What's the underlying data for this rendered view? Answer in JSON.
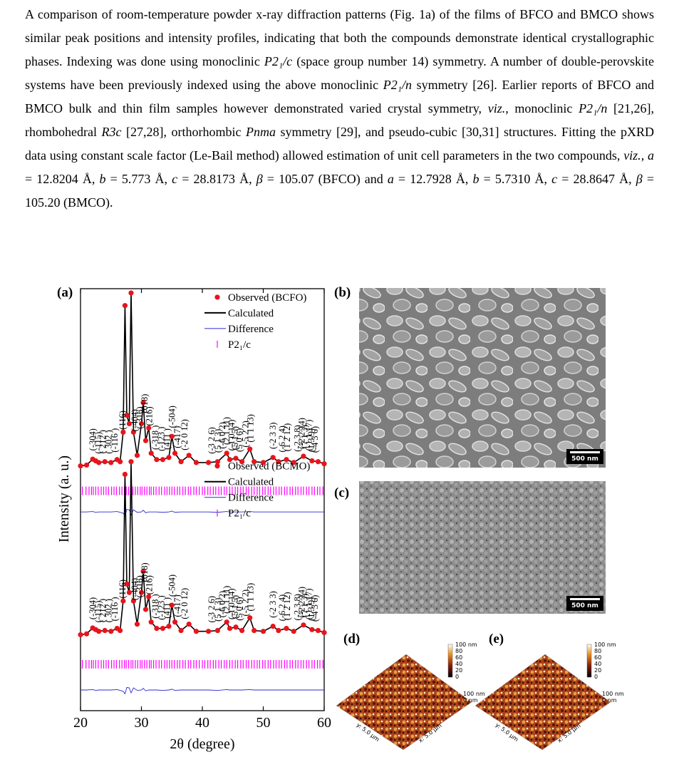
{
  "paragraph": {
    "runs": [
      {
        "text": "A comparison of room-temperature powder x-ray diffraction patterns (Fig. 1a) of the films of BFCO and BMCO shows similar peak positions and intensity profiles, indicating that both the compounds demonstrate identical crystallographic phases. Indexing was done using monoclinic "
      },
      {
        "text": "P2₁/c",
        "italic": true
      },
      {
        "text": " (space group number 14) symmetry. A number of double-perovskite systems have been previously indexed using the above monoclinic "
      },
      {
        "text": "P2₁/n",
        "italic": true
      },
      {
        "text": " symmetry [26].  Earlier reports of BFCO and BMCO bulk and thin film samples however demonstrated varied crystal symmetry, "
      },
      {
        "text": "viz.",
        "italic": true
      },
      {
        "text": ", monoclinic  "
      },
      {
        "text": "P2₁/n",
        "italic": true
      },
      {
        "text": " [21,26], rhombohedral "
      },
      {
        "text": "R3c",
        "italic": true
      },
      {
        "text": " [27,28], orthorhombic "
      },
      {
        "text": "Pnma",
        "italic": true
      },
      {
        "text": " symmetry [29], and pseudo-cubic [30,31] structures. Fitting the pXRD data using constant scale factor (Le-Bail method) allowed estimation of unit cell parameters in the two compounds, "
      },
      {
        "text": "viz.",
        "italic": true
      },
      {
        "text": ", "
      },
      {
        "text": "a",
        "italic": true
      },
      {
        "text": " = 12.8204 Å, "
      },
      {
        "text": "b",
        "italic": true
      },
      {
        "text": " = 5.773 Å, "
      },
      {
        "text": "c",
        "italic": true
      },
      {
        "text": " = 28.8173 Å, "
      },
      {
        "text": "β",
        "italic": true
      },
      {
        "text": " = 105.07 (BFCO) and "
      },
      {
        "text": "a",
        "italic": true
      },
      {
        "text": " = 12.7928 Å, "
      },
      {
        "text": "b",
        "italic": true
      },
      {
        "text": " = 5.7310 Å, "
      },
      {
        "text": "c",
        "italic": true
      },
      {
        "text": " = 28.8647 Å, "
      },
      {
        "text": "β",
        "italic": true
      },
      {
        "text": " = 105.20 (BMCO)."
      }
    ]
  },
  "figure": {
    "panel_labels": [
      "(a)",
      "(b)",
      "(c)",
      "(d)",
      "(e)"
    ],
    "xrd": {
      "type": "line",
      "xlabel": "2θ (degree)",
      "ylabel": "Intensity (a. u.)",
      "xlim": [
        20,
        60
      ],
      "xticks": [
        20,
        30,
        40,
        50,
        60
      ],
      "ylim": [
        0,
        100
      ],
      "x": [
        20,
        21,
        22,
        22.5,
        23,
        24,
        25,
        26,
        26.5,
        27,
        27.3,
        27.6,
        28,
        28.3,
        28.7,
        29.3,
        30,
        30.3,
        30.7,
        31.2,
        31.6,
        32.5,
        33.5,
        34.5,
        35,
        35.5,
        36.5,
        37.8,
        39,
        41,
        42.5,
        44,
        44.5,
        45.5,
        46.5,
        47.8,
        48.5,
        50,
        51.6,
        52.5,
        53.8,
        55,
        56.6,
        58,
        59,
        60
      ],
      "reflections": [
        20.3,
        20.9,
        21.4,
        21.8,
        22.1,
        22.5,
        22.9,
        23.4,
        23.8,
        24.2,
        24.6,
        25.1,
        25.5,
        25.9,
        26.4,
        26.8,
        27.2,
        27.5,
        27.9,
        28.3,
        28.6,
        29.0,
        29.4,
        29.8,
        30.1,
        30.5,
        30.9,
        31.3,
        31.6,
        32.0,
        32.4,
        32.9,
        33.3,
        33.8,
        34.2,
        34.6,
        35.0,
        35.4,
        35.9,
        36.3,
        36.8,
        37.2,
        37.7,
        38.1,
        38.6,
        39.0,
        39.5,
        40.0,
        40.4,
        40.9,
        41.3,
        41.8,
        42.2,
        42.7,
        43.1,
        43.6,
        44.0,
        44.5,
        44.9,
        45.4,
        45.8,
        46.3,
        46.7,
        47.2,
        47.6,
        48.1,
        48.5,
        49.0,
        49.4,
        49.9,
        50.3,
        50.8,
        51.2,
        51.7,
        52.1,
        52.6,
        53.0,
        53.5,
        53.9,
        54.4,
        54.8,
        55.3,
        55.7,
        56.2,
        56.6,
        57.1,
        57.5,
        58.0,
        58.4,
        58.9,
        59.3,
        59.8
      ],
      "peaks": [
        {
          "label": "(-304)",
          "x": 22.0
        },
        {
          "label": "(-115)",
          "x": 22.9
        },
        {
          "label": "( 212 )",
          "x": 23.6
        },
        {
          "label": "( 302 )",
          "x": 24.6
        },
        {
          "label": "(-116 )",
          "x": 25.6
        },
        {
          "label": "(116)",
          "x": 26.9
        },
        {
          "label": "(-404)",
          "x": 28.9
        },
        {
          "label": "(-316)",
          "x": 29.7
        },
        {
          "label": "(018)",
          "x": 30.5
        },
        {
          "label": "(216)",
          "x": 31.3
        },
        {
          "label": "(-318 )",
          "x": 32.3
        },
        {
          "label": "(-123 )",
          "x": 33.3
        },
        {
          "label": "(411 )",
          "x": 34.2
        },
        {
          "label": "(-504)",
          "x": 35.0
        },
        {
          "label": "(-417)",
          "x": 35.9
        },
        {
          "label": "(-2 0 12)",
          "x": 37.1
        },
        {
          "label": "(-3 2 6)",
          "x": 41.5
        },
        {
          "label": "(5 1 3)",
          "x": 42.6
        },
        {
          "label": "(-6 0 2)",
          "x": 43.3
        },
        {
          "label": "(2 1 11)",
          "x": 44.0
        },
        {
          "label": "(-1 0 14)",
          "x": 44.8
        },
        {
          "label": "(5 1 5)",
          "x": 45.4
        },
        {
          "label": "(5 0 6)",
          "x": 46.1
        },
        {
          "label": "(-5 2 2)",
          "x": 47.1
        },
        {
          "label": "(1 1 13)",
          "x": 47.9
        },
        {
          "label": "(-2 3 3)",
          "x": 51.6
        },
        {
          "label": "(-6 2 4)",
          "x": 53.1
        },
        {
          "label": "(1 2 12)",
          "x": 53.9
        },
        {
          "label": "(-2 3 8)",
          "x": 55.6
        },
        {
          "label": "(-2 2 14)",
          "x": 56.3
        },
        {
          "label": "(7 1 3)",
          "x": 56.8
        },
        {
          "label": "(-1 1 17)",
          "x": 57.5
        },
        {
          "label": "(1 3 9)",
          "x": 57.9
        },
        {
          "label": "(-4 3 6)",
          "x": 58.5
        }
      ],
      "patterns": [
        {
          "series": [
            {
              "name": "Observed (BCFO)",
              "color": "#e8141c",
              "values": [
                58.0,
                58.2,
                59.6,
                59.2,
                58.8,
                59.0,
                58.8,
                59.5,
                59.0,
                66.0,
                96.0,
                70.0,
                68.0,
                99.0,
                66.0,
                60.5,
                68.0,
                73.0,
                64.0,
                67.0,
                61.0,
                59.5,
                59.5,
                60.0,
                65.0,
                61.0,
                59.0,
                60.5,
                58.8,
                58.8,
                59.0,
                61.0,
                59.5,
                59.8,
                59.0,
                62.0,
                59.0,
                58.8,
                60.0,
                59.0,
                59.5,
                58.8,
                60.3,
                59.2,
                59.0,
                58.5
              ]
            },
            {
              "name": "Calculated",
              "color": "#000000",
              "values": [
                58.0,
                58.2,
                59.6,
                59.2,
                58.8,
                59.0,
                58.8,
                59.5,
                59.0,
                66.0,
                96.0,
                70.0,
                68.0,
                99.0,
                66.0,
                60.5,
                68.0,
                73.0,
                64.0,
                67.0,
                61.0,
                59.5,
                59.5,
                60.0,
                65.0,
                61.0,
                59.0,
                60.5,
                58.8,
                58.8,
                59.0,
                61.0,
                59.5,
                59.8,
                59.0,
                62.0,
                59.0,
                58.8,
                60.0,
                59.0,
                59.5,
                58.8,
                60.3,
                59.2,
                59.0,
                58.5
              ]
            },
            {
              "name": "Difference",
              "color": "#2b2bd0",
              "values": [
                47.1,
                47.1,
                47.2,
                47.0,
                47.1,
                47.1,
                47.1,
                47.2,
                47.0,
                46.8,
                46.2,
                47.7,
                47.6,
                46.4,
                47.6,
                47.0,
                47.1,
                47.5,
                46.9,
                47.1,
                47.1,
                47.1,
                47.0,
                47.1,
                47.3,
                47.0,
                47.1,
                47.1,
                47.1,
                47.1,
                47.0,
                47.2,
                47.1,
                47.1,
                47.1,
                47.2,
                47.1,
                47.1,
                47.1,
                47.1,
                47.1,
                47.1,
                47.1,
                47.1,
                47.1,
                47.1
              ]
            }
          ],
          "phase": {
            "name": "P2₁/c",
            "color": "#ff00ff"
          }
        },
        {
          "series": [
            {
              "name": "Observed (BCMO)",
              "color": "#e8141c",
              "values": [
                18.0,
                18.2,
                19.6,
                19.2,
                18.8,
                19.0,
                18.8,
                19.5,
                19.0,
                26.0,
                56.0,
                30.0,
                28.0,
                59.0,
                26.0,
                20.5,
                28.0,
                33.0,
                24.0,
                27.0,
                21.0,
                19.5,
                19.5,
                20.0,
                25.0,
                21.0,
                19.0,
                20.5,
                18.8,
                18.8,
                19.0,
                21.0,
                19.5,
                19.8,
                19.0,
                22.0,
                19.0,
                18.8,
                20.0,
                19.0,
                19.5,
                18.8,
                20.3,
                19.2,
                19.0,
                18.5
              ]
            },
            {
              "name": "Calculated",
              "color": "#000000",
              "values": [
                18.0,
                18.2,
                19.6,
                19.2,
                18.8,
                19.0,
                18.8,
                19.5,
                19.0,
                26.0,
                56.0,
                30.0,
                28.0,
                59.0,
                26.0,
                20.5,
                28.0,
                33.0,
                24.0,
                27.0,
                21.0,
                19.5,
                19.5,
                20.0,
                25.0,
                21.0,
                19.0,
                20.5,
                18.8,
                18.8,
                19.0,
                21.0,
                19.5,
                19.8,
                19.0,
                22.0,
                19.0,
                18.8,
                20.0,
                19.0,
                19.5,
                18.8,
                20.3,
                19.2,
                19.0,
                18.5
              ]
            },
            {
              "name": "Difference",
              "color": "#2b2bd0",
              "values": [
                4.9,
                4.9,
                5.0,
                4.8,
                4.9,
                4.9,
                4.9,
                5.0,
                4.8,
                4.6,
                4.0,
                5.5,
                5.4,
                4.2,
                5.4,
                4.8,
                4.9,
                5.3,
                4.7,
                4.9,
                4.9,
                4.9,
                4.8,
                4.9,
                5.1,
                4.8,
                4.9,
                4.9,
                4.9,
                4.9,
                4.8,
                5.0,
                4.9,
                4.9,
                4.9,
                5.0,
                4.9,
                4.9,
                4.9,
                4.9,
                4.9,
                4.9,
                4.9,
                4.9,
                4.9,
                4.9
              ]
            }
          ],
          "phase": {
            "name": "P2₁/c",
            "color": "#ff00ff"
          }
        }
      ]
    },
    "sem": [
      {
        "scale_bar": "500 nm"
      },
      {
        "scale_bar": "500 nm"
      }
    ],
    "afm": [
      {
        "colorbar_ticks": [
          "100 nm",
          "80",
          "60",
          "40",
          "20",
          "0"
        ],
        "z_labels": [
          "100 nm",
          "0 nm"
        ],
        "axis_labels": [
          "y: 5.0 µm",
          "x: 5.0 µm"
        ]
      },
      {
        "colorbar_ticks": [
          "100 nm",
          "80",
          "60",
          "40",
          "20",
          "0"
        ],
        "z_labels": [
          "100 nm",
          "0 nm"
        ],
        "axis_labels": [
          "y: 5.0 µm",
          "x: 5.0 µm"
        ]
      }
    ]
  }
}
